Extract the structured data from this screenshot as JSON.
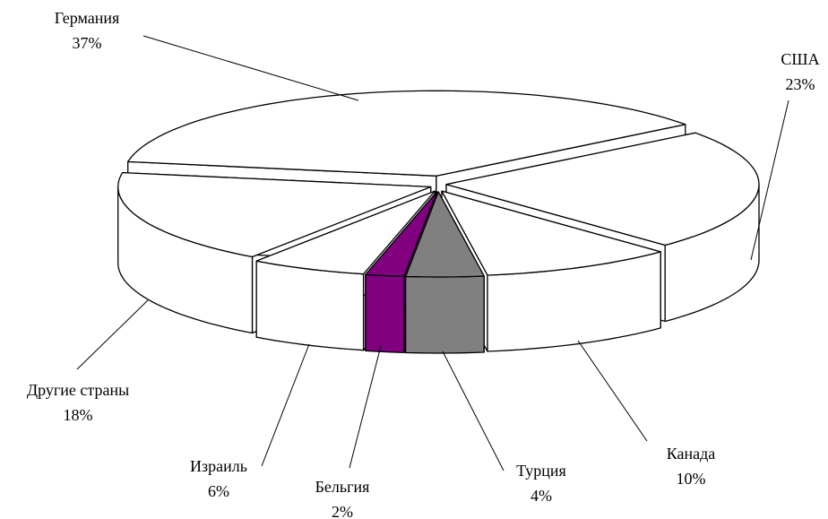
{
  "chart_data": {
    "type": "pie",
    "categories": [
      "Германия",
      "США",
      "Канада",
      "Турция",
      "Бельгия",
      "Израиль",
      "Другие страны"
    ],
    "values": [
      37,
      23,
      10,
      4,
      2,
      6,
      18
    ],
    "value_labels": [
      "37%",
      "23%",
      "10%",
      "4%",
      "2%",
      "6%",
      "18%"
    ],
    "colors": [
      "#ffffff",
      "#ffffff",
      "#ffffff",
      "#808080",
      "#800080",
      "#ffffff",
      "#ffffff"
    ]
  }
}
